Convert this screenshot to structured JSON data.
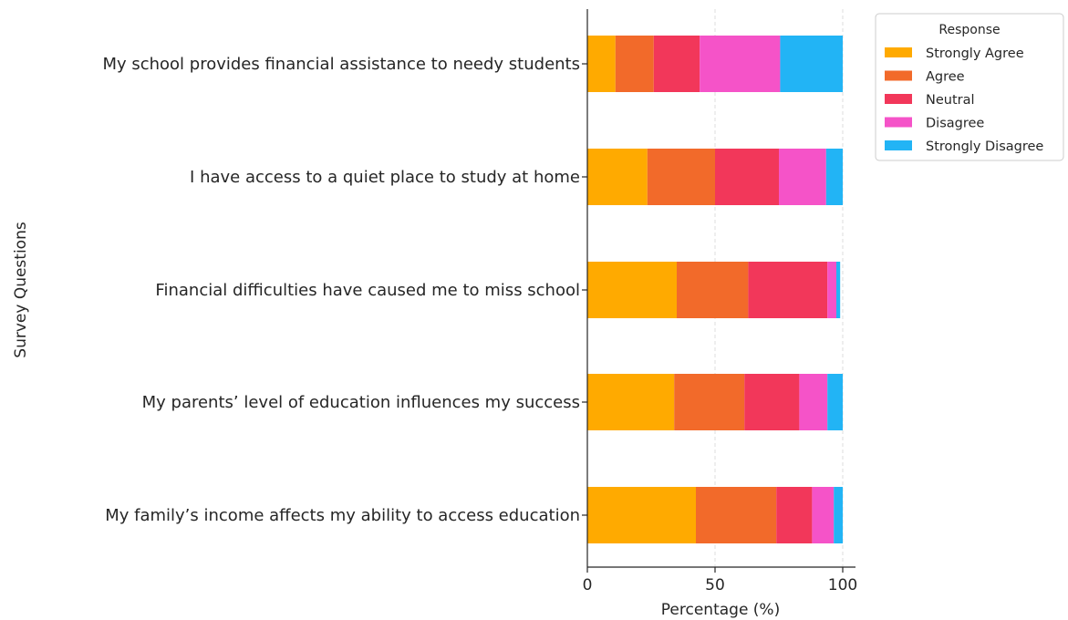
{
  "chart_data": {
    "type": "bar",
    "orientation": "horizontal",
    "stacked": true,
    "xlabel": "Percentage (%)",
    "ylabel": "Survey Questions",
    "xlim": [
      0,
      105
    ],
    "xticks": [
      0,
      50,
      100
    ],
    "grid": "vertical dashed",
    "categories": [
      "My school provides financial assistance to needy students",
      "I have access to a quiet place to study at home",
      "Financial difficulties have caused me to miss school",
      "My parents’ level of education influences my success",
      "My family’s income affects my ability to access education"
    ],
    "series": [
      {
        "name": "Strongly Agree",
        "color": "#FFAA00",
        "values": [
          11,
          23.5,
          35,
          34,
          42.5
        ]
      },
      {
        "name": "Agree",
        "color": "#F26A2A",
        "values": [
          15,
          26.5,
          28,
          27.5,
          31.5
        ]
      },
      {
        "name": "Neutral",
        "color": "#F2375A",
        "values": [
          18,
          25,
          31,
          21.5,
          14
        ]
      },
      {
        "name": "Disagree",
        "color": "#F553C8",
        "values": [
          31.5,
          18.5,
          3.5,
          11,
          8.5
        ]
      },
      {
        "name": "Strongly Disagree",
        "color": "#22B4F5",
        "values": [
          24.5,
          6.5,
          1.5,
          6,
          3.5
        ]
      }
    ],
    "legend": {
      "title": "Response",
      "placement": "top-right outside"
    }
  }
}
